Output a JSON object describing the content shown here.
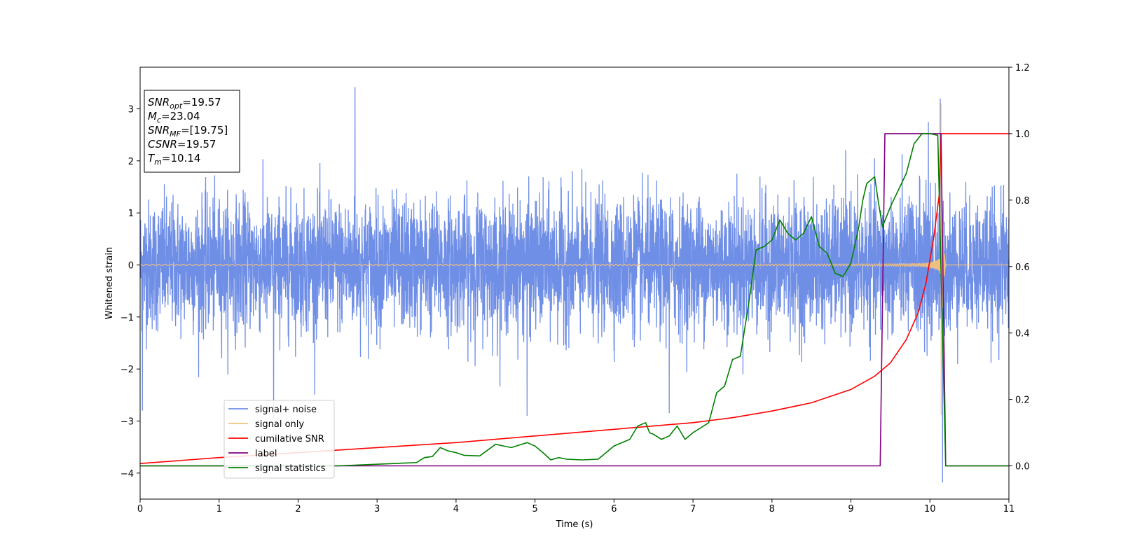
{
  "chart_data": {
    "type": "line",
    "xlabel": "Time (s)",
    "ylabel_left": "Whitened strain",
    "ylabel_right": "",
    "xlim": [
      0,
      11
    ],
    "ylim_left": [
      -4.5,
      3.8
    ],
    "ylim_right": [
      -0.1,
      1.2
    ],
    "x_ticks": [
      0,
      1,
      2,
      3,
      4,
      5,
      6,
      7,
      8,
      9,
      10,
      11
    ],
    "y_ticks_left": [
      -4,
      -3,
      -2,
      -1,
      0,
      1,
      2,
      3
    ],
    "y_ticks_right": [
      0.0,
      0.2,
      0.4,
      0.6,
      0.8,
      1.0,
      1.2
    ],
    "grid": false,
    "legend_position": "lower-left",
    "annotation": {
      "lines": [
        {
          "var": "SNR",
          "sub": "opt",
          "value": "=19.57"
        },
        {
          "var": "M",
          "sub": "c",
          "value": "=23.04"
        },
        {
          "var": "SNR",
          "sub": "MF",
          "value": "=[19.75]"
        },
        {
          "var": "CSNR",
          "sub": "",
          "value": "=19.57"
        },
        {
          "var": "T",
          "sub": "m",
          "value": "=10.14"
        }
      ]
    },
    "series": [
      {
        "name": "signal+ noise",
        "axis": "left",
        "color": "#6f8ee6",
        "kind": "noise",
        "std": 0.62,
        "peak_max": 3.42,
        "peak_min": -4.18,
        "x_range": [
          0,
          11
        ]
      },
      {
        "name": "signal only",
        "axis": "left",
        "color": "#f5c27a",
        "kind": "chirp",
        "merger_time": 10.14,
        "end_time": 10.2,
        "peak": 3.25,
        "x_range": [
          0,
          11
        ]
      },
      {
        "name": "cumilative SNR",
        "axis": "right",
        "color": "#ff0000",
        "x": [
          0,
          1,
          2,
          3,
          4,
          5,
          6,
          7,
          7.5,
          8,
          8.5,
          9,
          9.3,
          9.5,
          9.7,
          9.85,
          9.95,
          10.05,
          10.12,
          10.14,
          10.2,
          11
        ],
        "values": [
          0.007,
          0.025,
          0.04,
          0.055,
          0.07,
          0.09,
          0.11,
          0.13,
          0.145,
          0.165,
          0.19,
          0.23,
          0.27,
          0.31,
          0.38,
          0.46,
          0.55,
          0.69,
          0.82,
          1.0,
          1.0,
          1.0
        ]
      },
      {
        "name": "label",
        "axis": "right",
        "color": "#800080",
        "x": [
          0,
          9.37,
          9.43,
          10.14,
          10.2,
          11
        ],
        "values": [
          0,
          0,
          1,
          1,
          0,
          0
        ]
      },
      {
        "name": "signal statistics",
        "axis": "right",
        "color": "#008000",
        "x": [
          0,
          2.5,
          3.0,
          3.5,
          3.6,
          3.7,
          3.8,
          3.9,
          4.0,
          4.1,
          4.3,
          4.5,
          4.6,
          4.7,
          4.9,
          5.0,
          5.1,
          5.2,
          5.3,
          5.4,
          5.6,
          5.8,
          6.0,
          6.2,
          6.3,
          6.4,
          6.45,
          6.5,
          6.6,
          6.7,
          6.8,
          6.9,
          7.0,
          7.1,
          7.2,
          7.3,
          7.35,
          7.4,
          7.5,
          7.6,
          7.7,
          7.8,
          7.9,
          8.0,
          8.1,
          8.2,
          8.3,
          8.4,
          8.5,
          8.6,
          8.7,
          8.8,
          8.9,
          9.0,
          9.1,
          9.15,
          9.2,
          9.3,
          9.35,
          9.4,
          9.5,
          9.6,
          9.7,
          9.8,
          9.9,
          10.0,
          10.1,
          10.2,
          11
        ],
        "values": [
          0.0,
          0.0,
          0.005,
          0.01,
          0.025,
          0.028,
          0.055,
          0.045,
          0.04,
          0.032,
          0.03,
          0.065,
          0.06,
          0.055,
          0.07,
          0.06,
          0.04,
          0.018,
          0.025,
          0.02,
          0.018,
          0.02,
          0.06,
          0.08,
          0.12,
          0.13,
          0.1,
          0.095,
          0.08,
          0.09,
          0.12,
          0.08,
          0.1,
          0.115,
          0.13,
          0.22,
          0.23,
          0.24,
          0.32,
          0.33,
          0.48,
          0.65,
          0.66,
          0.68,
          0.74,
          0.7,
          0.68,
          0.7,
          0.75,
          0.66,
          0.64,
          0.58,
          0.57,
          0.61,
          0.72,
          0.8,
          0.85,
          0.87,
          0.79,
          0.72,
          0.78,
          0.83,
          0.88,
          0.97,
          1.0,
          1.0,
          0.995,
          0.0,
          0.0
        ]
      }
    ]
  }
}
